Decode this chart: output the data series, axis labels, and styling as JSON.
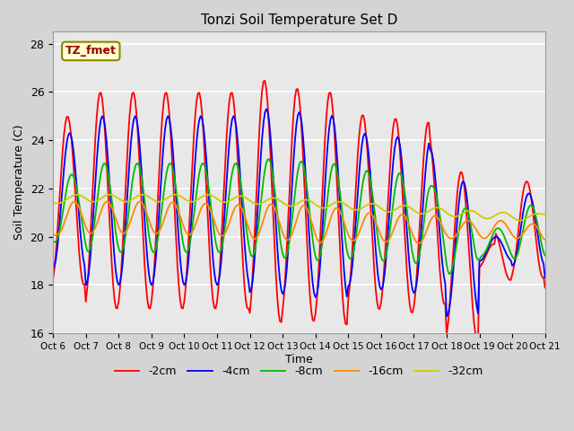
{
  "title": "Tonzi Soil Temperature Set D",
  "xlabel": "Time",
  "ylabel": "Soil Temperature (C)",
  "ylim": [
    16,
    28.5
  ],
  "xlim": [
    0,
    15
  ],
  "annotation_text": "TZ_fmet",
  "annotation_bg": "#ffffcc",
  "annotation_border": "#888800",
  "series_colors": {
    "-2cm": "#ff0000",
    "-4cm": "#0000ff",
    "-8cm": "#00bb00",
    "-16cm": "#ff8800",
    "-32cm": "#cccc00"
  },
  "xtick_labels": [
    "Oct 6",
    "Oct 7",
    "Oct 8",
    "Oct 9",
    "Oct 10",
    "Oct 11",
    "Oct 12",
    "Oct 13",
    "Oct 14",
    "Oct 15",
    "Oct 16",
    "Oct 17",
    "Oct 18",
    "Oct 19",
    "Oct 20",
    "Oct 21"
  ],
  "ytick_labels": [
    16,
    18,
    20,
    22,
    24,
    26,
    28
  ],
  "fig_facecolor": "#d4d4d4",
  "ax_facecolor": "#e8e8e8",
  "grid_color": "#ffffff",
  "linewidth": 1.3
}
